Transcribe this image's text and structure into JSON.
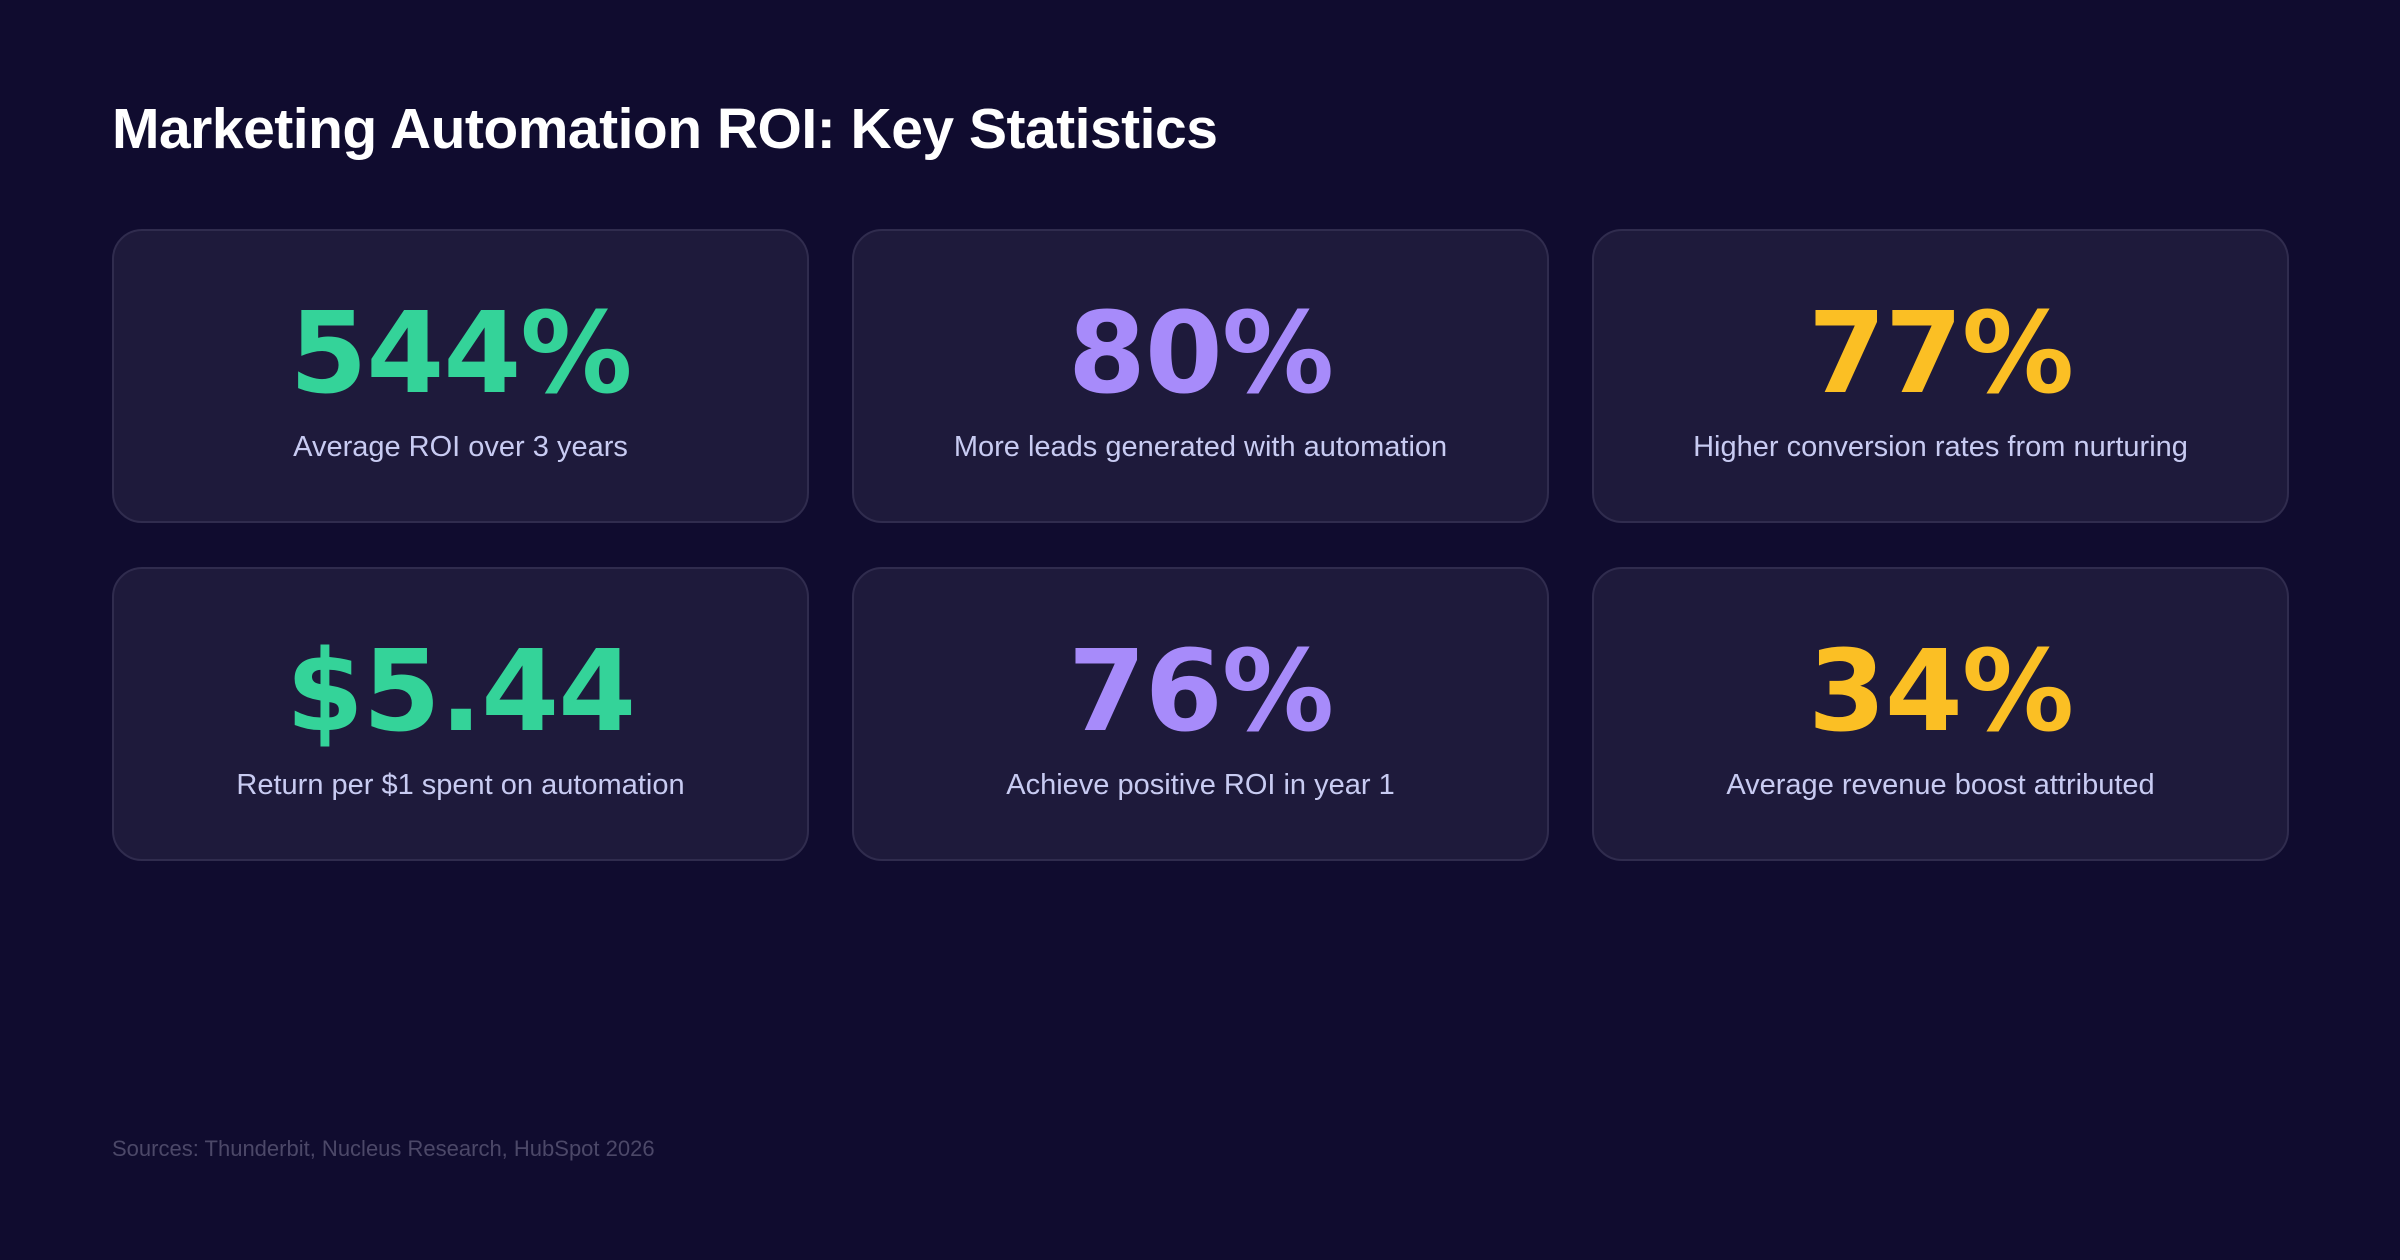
{
  "title": "Marketing Automation ROI: Key Statistics",
  "colors": {
    "background": "#100c2f",
    "card": "#1e1a3b",
    "green": "#34d399",
    "purple": "#a78bfa",
    "yellow": "#fbbf24"
  },
  "stats": [
    {
      "value": "544%",
      "label": "Average ROI over 3 years",
      "color": "#34d399"
    },
    {
      "value": "80%",
      "label": "More leads generated with automation",
      "color": "#a78bfa"
    },
    {
      "value": "77%",
      "label": "Higher conversion rates from nurturing",
      "color": "#fbbf24"
    },
    {
      "value": "$5.44",
      "label": "Return per $1 spent on automation",
      "color": "#34d399"
    },
    {
      "value": "76%",
      "label": "Achieve positive ROI in year 1",
      "color": "#a78bfa"
    },
    {
      "value": "34%",
      "label": "Average revenue boost attributed",
      "color": "#fbbf24"
    }
  ],
  "sources": "Sources: Thunderbit, Nucleus Research, HubSpot 2026"
}
